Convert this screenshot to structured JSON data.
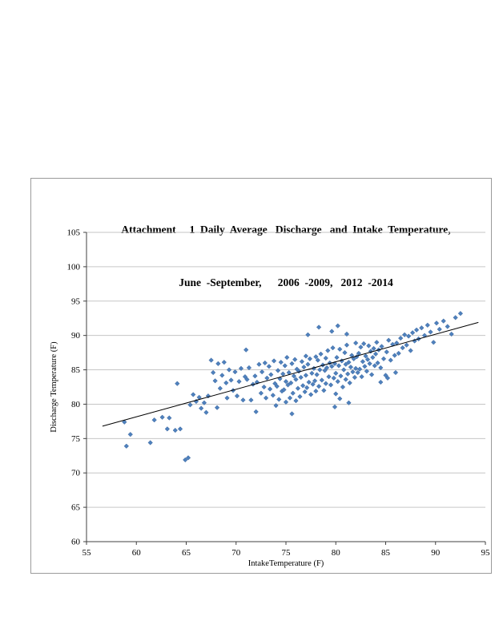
{
  "chart": {
    "title_line1": "Attachment     1  Daily  Average   Discharge   and  Intake  Temperature,",
    "title_line2": "June  -September,      2006  -2009,   2012  -2014"
  },
  "chart_data": {
    "type": "scatter",
    "title": "Attachment 1 Daily Average Discharge and Intake Temperature, June -September, 2006 -2009, 2012 -2014",
    "xlabel": "IntakeTemperature     (F)",
    "ylabel": "Discharge  Temperature   (F)",
    "xlim": [
      55,
      95
    ],
    "ylim": [
      60,
      105
    ],
    "x_ticks": [
      55,
      60,
      65,
      70,
      75,
      80,
      85,
      90,
      95
    ],
    "y_ticks": [
      60,
      65,
      70,
      75,
      80,
      85,
      90,
      95,
      100,
      105
    ],
    "grid": "horizontal",
    "legend": "none",
    "colors": {
      "marker_fill": "#4f81bd",
      "marker_stroke": "#36629b",
      "gridline": "#c6c6c6",
      "axis": "#404040",
      "trendline": "#000000"
    },
    "trendline": {
      "x1": 56.6,
      "y1": 76.8,
      "x2": 94.3,
      "y2": 91.9
    },
    "points": [
      [
        58.8,
        77.4
      ],
      [
        59.0,
        73.9
      ],
      [
        59.4,
        75.6
      ],
      [
        61.4,
        74.4
      ],
      [
        61.8,
        77.7
      ],
      [
        62.6,
        78.1
      ],
      [
        63.1,
        76.4
      ],
      [
        63.3,
        78.0
      ],
      [
        63.9,
        76.2
      ],
      [
        64.1,
        83.0
      ],
      [
        64.4,
        76.4
      ],
      [
        64.9,
        71.9
      ],
      [
        65.2,
        72.2
      ],
      [
        65.4,
        79.9
      ],
      [
        65.7,
        81.4
      ],
      [
        66.0,
        80.4
      ],
      [
        66.3,
        81.0
      ],
      [
        66.5,
        79.4
      ],
      [
        66.8,
        80.2
      ],
      [
        67.0,
        78.8
      ],
      [
        67.2,
        81.2
      ],
      [
        67.5,
        86.4
      ],
      [
        67.7,
        84.6
      ],
      [
        67.9,
        83.4
      ],
      [
        68.1,
        79.5
      ],
      [
        68.2,
        85.9
      ],
      [
        68.4,
        82.3
      ],
      [
        68.6,
        84.2
      ],
      [
        68.8,
        86.1
      ],
      [
        69.0,
        83.1
      ],
      [
        69.1,
        80.9
      ],
      [
        69.3,
        85.0
      ],
      [
        69.5,
        83.5
      ],
      [
        69.7,
        82.0
      ],
      [
        69.9,
        84.7
      ],
      [
        70.1,
        81.2
      ],
      [
        70.3,
        83.3
      ],
      [
        70.5,
        85.2
      ],
      [
        70.7,
        80.6
      ],
      [
        70.9,
        84.0
      ],
      [
        71.0,
        87.9
      ],
      [
        71.1,
        83.6
      ],
      [
        71.3,
        85.3
      ],
      [
        71.5,
        80.6
      ],
      [
        71.7,
        82.9
      ],
      [
        71.9,
        84.1
      ],
      [
        72.0,
        78.9
      ],
      [
        72.1,
        83.2
      ],
      [
        72.3,
        85.8
      ],
      [
        72.5,
        81.6
      ],
      [
        72.6,
        84.7
      ],
      [
        72.8,
        82.5
      ],
      [
        72.9,
        86.0
      ],
      [
        73.0,
        80.9
      ],
      [
        73.1,
        83.8
      ],
      [
        73.3,
        85.5
      ],
      [
        73.4,
        82.2
      ],
      [
        73.5,
        84.3
      ],
      [
        73.7,
        81.3
      ],
      [
        73.8,
        86.3
      ],
      [
        73.9,
        83.0
      ],
      [
        74.0,
        79.8
      ],
      [
        74.1,
        82.6
      ],
      [
        74.2,
        84.9
      ],
      [
        74.3,
        80.7
      ],
      [
        74.4,
        83.7
      ],
      [
        74.5,
        86.1
      ],
      [
        74.6,
        81.9
      ],
      [
        74.7,
        84.4
      ],
      [
        74.8,
        82.1
      ],
      [
        74.9,
        85.6
      ],
      [
        75.0,
        80.3
      ],
      [
        75.0,
        83.3
      ],
      [
        75.1,
        86.8
      ],
      [
        75.2,
        82.8
      ],
      [
        75.3,
        84.6
      ],
      [
        75.4,
        80.9
      ],
      [
        75.5,
        83.1
      ],
      [
        75.6,
        78.6
      ],
      [
        75.6,
        85.9
      ],
      [
        75.7,
        81.6
      ],
      [
        75.8,
        84.1
      ],
      [
        75.9,
        86.5
      ],
      [
        76.0,
        80.5
      ],
      [
        76.0,
        83.6
      ],
      [
        76.1,
        85.1
      ],
      [
        76.2,
        82.3
      ],
      [
        76.3,
        84.8
      ],
      [
        76.4,
        81.1
      ],
      [
        76.5,
        83.9
      ],
      [
        76.6,
        86.2
      ],
      [
        76.7,
        82.7
      ],
      [
        76.8,
        85.4
      ],
      [
        76.9,
        81.8
      ],
      [
        77.0,
        84.2
      ],
      [
        77.0,
        87.0
      ],
      [
        77.1,
        82.4
      ],
      [
        77.2,
        90.1
      ],
      [
        77.2,
        85.8
      ],
      [
        77.3,
        83.2
      ],
      [
        77.4,
        86.6
      ],
      [
        77.5,
        81.4
      ],
      [
        77.6,
        84.5
      ],
      [
        77.7,
        82.9
      ],
      [
        77.8,
        85.2
      ],
      [
        77.9,
        83.4
      ],
      [
        78.0,
        86.9
      ],
      [
        78.0,
        81.9
      ],
      [
        78.1,
        84.3
      ],
      [
        78.2,
        86.4
      ],
      [
        78.3,
        91.2
      ],
      [
        78.3,
        82.6
      ],
      [
        78.4,
        85.0
      ],
      [
        78.5,
        87.3
      ],
      [
        78.6,
        83.5
      ],
      [
        78.7,
        85.7
      ],
      [
        78.8,
        82.0
      ],
      [
        78.9,
        84.9
      ],
      [
        79.0,
        86.7
      ],
      [
        79.0,
        83.0
      ],
      [
        79.1,
        85.3
      ],
      [
        79.2,
        87.8
      ],
      [
        79.3,
        84.0
      ],
      [
        79.4,
        86.0
      ],
      [
        79.5,
        82.8
      ],
      [
        79.6,
        90.6
      ],
      [
        79.6,
        85.5
      ],
      [
        79.7,
        88.2
      ],
      [
        79.8,
        83.8
      ],
      [
        79.9,
        79.6
      ],
      [
        79.9,
        85.9
      ],
      [
        80.0,
        81.5
      ],
      [
        80.0,
        84.5
      ],
      [
        80.1,
        86.8
      ],
      [
        80.2,
        91.4
      ],
      [
        80.2,
        83.3
      ],
      [
        80.3,
        85.6
      ],
      [
        80.4,
        88.0
      ],
      [
        80.4,
        80.8
      ],
      [
        80.5,
        84.1
      ],
      [
        80.6,
        86.3
      ],
      [
        80.7,
        82.5
      ],
      [
        80.8,
        85.0
      ],
      [
        80.9,
        87.5
      ],
      [
        81.0,
        83.6
      ],
      [
        81.0,
        85.8
      ],
      [
        81.1,
        90.2
      ],
      [
        81.1,
        88.6
      ],
      [
        81.2,
        84.4
      ],
      [
        81.3,
        86.1
      ],
      [
        81.3,
        80.2
      ],
      [
        81.4,
        83.1
      ],
      [
        81.5,
        85.4
      ],
      [
        81.6,
        87.1
      ],
      [
        81.7,
        84.7
      ],
      [
        81.8,
        86.6
      ],
      [
        81.9,
        83.9
      ],
      [
        82.0,
        85.2
      ],
      [
        82.0,
        88.9
      ],
      [
        82.1,
        86.9
      ],
      [
        82.2,
        84.6
      ],
      [
        82.3,
        87.4
      ],
      [
        82.4,
        85.1
      ],
      [
        82.5,
        88.3
      ],
      [
        82.6,
        84.0
      ],
      [
        82.7,
        86.2
      ],
      [
        82.8,
        88.8
      ],
      [
        82.9,
        85.5
      ],
      [
        83.0,
        87.0
      ],
      [
        83.1,
        84.8
      ],
      [
        83.2,
        86.5
      ],
      [
        83.3,
        88.5
      ],
      [
        83.4,
        85.9
      ],
      [
        83.5,
        87.7
      ],
      [
        83.6,
        84.3
      ],
      [
        83.7,
        86.8
      ],
      [
        83.8,
        88.1
      ],
      [
        83.9,
        85.6
      ],
      [
        84.0,
        87.3
      ],
      [
        84.1,
        89.0
      ],
      [
        84.2,
        86.0
      ],
      [
        84.3,
        87.9
      ],
      [
        84.5,
        83.2
      ],
      [
        84.5,
        85.3
      ],
      [
        84.6,
        88.4
      ],
      [
        84.8,
        86.6
      ],
      [
        85.0,
        84.2
      ],
      [
        85.1,
        87.6
      ],
      [
        85.2,
        83.8
      ],
      [
        85.3,
        89.3
      ],
      [
        85.5,
        86.4
      ],
      [
        85.7,
        88.7
      ],
      [
        85.9,
        87.1
      ],
      [
        86.0,
        84.6
      ],
      [
        86.1,
        88.9
      ],
      [
        86.3,
        87.4
      ],
      [
        86.5,
        89.6
      ],
      [
        86.7,
        88.2
      ],
      [
        86.9,
        90.1
      ],
      [
        87.1,
        88.6
      ],
      [
        87.3,
        89.9
      ],
      [
        87.5,
        87.8
      ],
      [
        87.7,
        90.4
      ],
      [
        87.9,
        89.2
      ],
      [
        88.1,
        90.8
      ],
      [
        88.3,
        89.5
      ],
      [
        88.6,
        91.1
      ],
      [
        88.9,
        90.0
      ],
      [
        89.2,
        91.5
      ],
      [
        89.5,
        90.5
      ],
      [
        89.8,
        89.0
      ],
      [
        90.1,
        91.8
      ],
      [
        90.4,
        90.9
      ],
      [
        90.8,
        92.1
      ],
      [
        91.2,
        91.3
      ],
      [
        91.6,
        90.2
      ],
      [
        92.0,
        92.6
      ],
      [
        92.5,
        93.2
      ]
    ]
  }
}
